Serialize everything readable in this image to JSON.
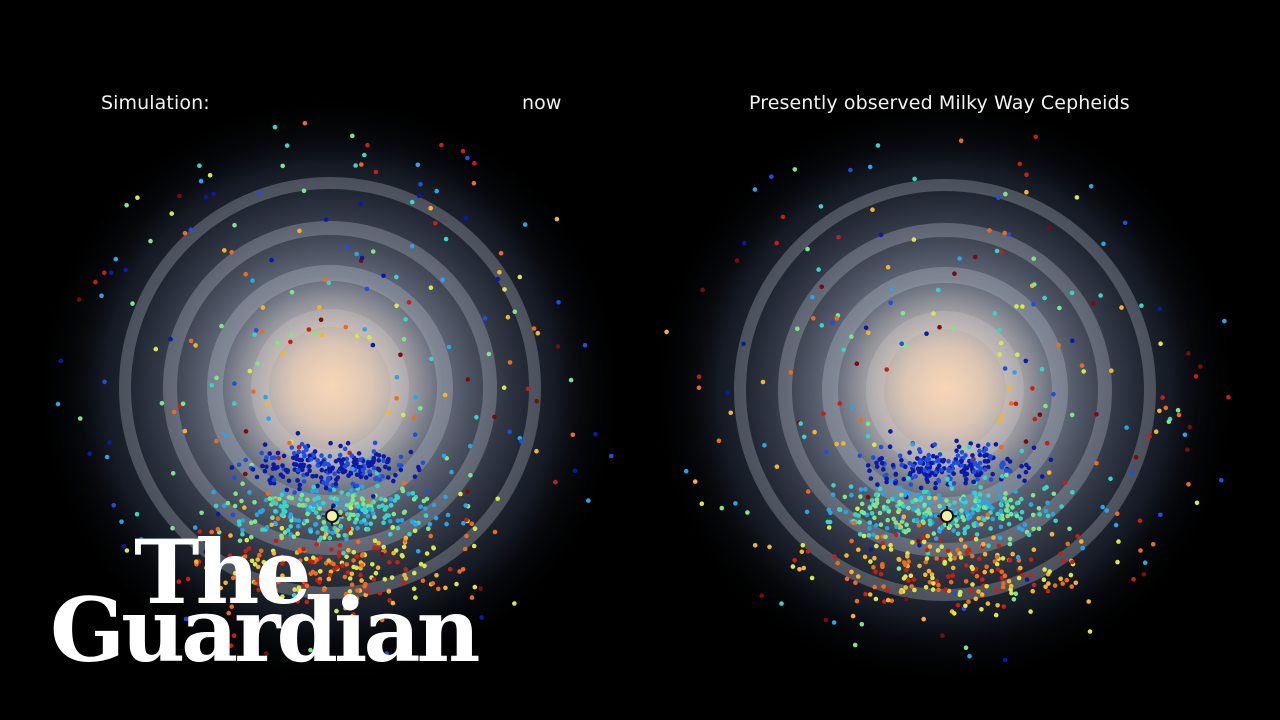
{
  "left_panel": {
    "label": "Simulation:",
    "time_label": "now"
  },
  "right_panel": {
    "label": "Presently observed Milky Way Cepheids"
  },
  "logo": {
    "line1": "The",
    "line2": "Guardian",
    "color": "#ffffff"
  },
  "colors": {
    "background": "#000000",
    "galaxy_core": "#f4d2b4",
    "galaxy_arms": "#aeb6c8",
    "sun_marker": "#f7f0a0",
    "star_palette": [
      "#0a1aa8",
      "#1f4fe0",
      "#2aa3e8",
      "#35d6c8",
      "#7ee68a",
      "#d8e84a",
      "#f5b52a",
      "#ef6a1e",
      "#c81e14",
      "#7a0c0c"
    ]
  },
  "icons": {
    "sun_position_marker": "sun-icon"
  }
}
